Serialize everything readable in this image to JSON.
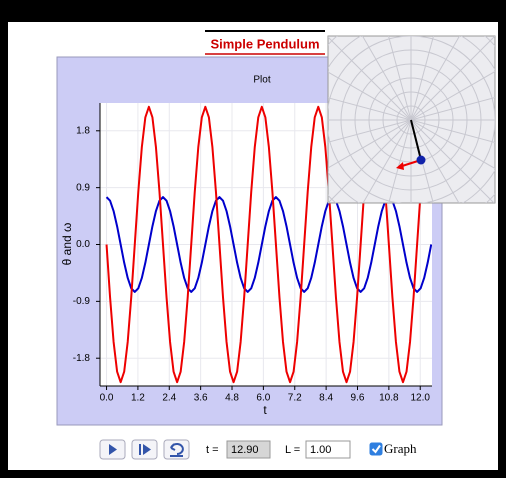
{
  "title": "Simple Pendulum",
  "chart_data": {
    "type": "line",
    "title": "Plot",
    "xlabel": "t",
    "ylabel": "θ and ω",
    "x": [
      0,
      0.135,
      0.27,
      0.405,
      0.54,
      0.675,
      0.81,
      0.945,
      1.08,
      1.215,
      1.35,
      1.485,
      1.62,
      1.755,
      1.89,
      2.025,
      2.16,
      2.295,
      2.43,
      2.565,
      2.7,
      2.835,
      2.97,
      3.105,
      3.24,
      3.375,
      3.51,
      3.645,
      3.78,
      3.915,
      4.05,
      4.185,
      4.32,
      4.455,
      4.59,
      4.725,
      4.86,
      4.995,
      5.13,
      5.265,
      5.4,
      5.535,
      5.67,
      5.805,
      5.94,
      6.075,
      6.21,
      6.345,
      6.48,
      6.615,
      6.75,
      6.885,
      7.02,
      7.155,
      7.29,
      7.425,
      7.56,
      7.695,
      7.83,
      7.965,
      8.1,
      8.235,
      8.37,
      8.505,
      8.64,
      8.775,
      8.91,
      9.045,
      9.18,
      9.315,
      9.45,
      9.585,
      9.72,
      9.855,
      9.99,
      10.125,
      10.26,
      10.395,
      10.53,
      10.665,
      10.8,
      10.935,
      11.07,
      11.205,
      11.34,
      11.475,
      11.61,
      11.745,
      11.88,
      12.015,
      12.15,
      12.285,
      12.42
    ],
    "series": [
      {
        "color": "#0000cc",
        "values": [
          0.75,
          0.693,
          0.53,
          0.287,
          0,
          -0.287,
          -0.53,
          -0.693,
          -0.75,
          -0.693,
          -0.53,
          -0.287,
          0,
          0.287,
          0.53,
          0.693,
          0.75,
          0.693,
          0.53,
          0.287,
          0,
          -0.287,
          -0.53,
          -0.693,
          -0.75,
          -0.693,
          -0.53,
          -0.287,
          0,
          0.287,
          0.53,
          0.693,
          0.75,
          0.693,
          0.53,
          0.287,
          0,
          -0.287,
          -0.53,
          -0.693,
          -0.75,
          -0.693,
          -0.53,
          -0.287,
          0,
          0.287,
          0.53,
          0.693,
          0.75,
          0.693,
          0.53,
          0.287,
          0,
          -0.287,
          -0.53,
          -0.693,
          -0.75,
          -0.693,
          -0.53,
          -0.287,
          0,
          0.287,
          0.53,
          0.693,
          0.75,
          0.693,
          0.53,
          0.287,
          0,
          -0.287,
          -0.53,
          -0.693,
          -0.75,
          -0.693,
          -0.53,
          -0.287,
          0,
          0.287,
          0.53,
          0.693,
          0.75,
          0.693,
          0.53,
          0.287,
          0,
          -0.287,
          -0.53,
          -0.693,
          -0.75,
          -0.693,
          -0.53,
          -0.287,
          0
        ]
      },
      {
        "color": "#ee0000",
        "values": [
          0,
          -0.834,
          -1.541,
          -2.014,
          -2.18,
          -2.014,
          -1.541,
          -0.834,
          0,
          0.834,
          1.541,
          2.014,
          2.18,
          2.014,
          1.541,
          0.834,
          0,
          -0.834,
          -1.541,
          -2.014,
          -2.18,
          -2.014,
          -1.541,
          -0.834,
          0,
          0.834,
          1.541,
          2.014,
          2.18,
          2.014,
          1.541,
          0.834,
          0,
          -0.834,
          -1.541,
          -2.014,
          -2.18,
          -2.014,
          -1.541,
          -0.834,
          0,
          0.834,
          1.541,
          2.014,
          2.18,
          2.014,
          1.541,
          0.834,
          0,
          -0.834,
          -1.541,
          -2.014,
          -2.18,
          -2.014,
          -1.541,
          -0.834,
          0,
          0.834,
          1.541,
          2.014,
          2.18,
          2.014,
          1.541,
          0.834,
          0,
          -0.834,
          -1.541,
          -2.014,
          -2.18,
          -2.014,
          -1.541,
          -0.834,
          0,
          0.834,
          1.541,
          2.014,
          2.18,
          2.014,
          1.541,
          0.834,
          0,
          -0.834,
          -1.541,
          -2.014,
          -2.18,
          -2.014,
          -1.541,
          -0.834,
          0,
          0.834,
          1.541,
          2.014,
          2.18
        ]
      }
    ],
    "xlim": [
      -0.25,
      12.45
    ],
    "ylim": [
      -2.24,
      2.24
    ],
    "xticks": [
      {
        "value": 0,
        "label": "0.0"
      },
      1.2,
      2.4,
      3.6,
      4.8,
      {
        "value": 6,
        "label": "6.0"
      },
      7.2,
      8.4,
      9.6,
      10.8,
      {
        "value": 12,
        "label": "12.0"
      }
    ],
    "yticks": [
      1.8,
      0.9,
      {
        "value": 0,
        "label": "0.0"
      },
      -0.9,
      -1.8
    ],
    "grid": true
  },
  "controls": {
    "t_label": "t =",
    "t_value": "12.90",
    "L_label": "L =",
    "L_value": "1.00",
    "graph_label": "Graph",
    "graph_checked": true
  }
}
